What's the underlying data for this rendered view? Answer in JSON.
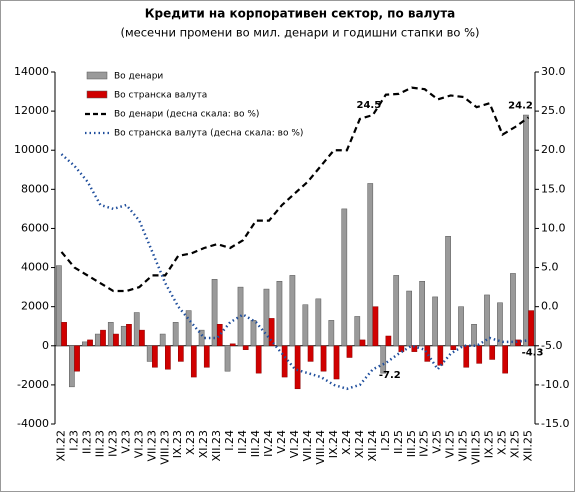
{
  "chart_data": {
    "type": "bar_line",
    "title": "Кредити на корпоративен сектор, по валута",
    "subtitle": "(месечни промени во мил. денари и годишни стапки во %)",
    "categories": [
      "XII.22",
      "I.23",
      "II.23",
      "III.23",
      "IV.23",
      "V.23",
      "VI.23",
      "VII.23",
      "VIII.23",
      "IX.23",
      "X.23",
      "XI.23",
      "XII.23",
      "I.24",
      "II.24",
      "III.24",
      "IV.24",
      "V.24",
      "VI.24",
      "VII.24",
      "VIII.24",
      "IX.24",
      "X.24",
      "XI.24",
      "XII.24",
      "I.25",
      "II.25",
      "III.25",
      "IV.25",
      "V.25",
      "VI.25",
      "VII.25",
      "VIII.25",
      "IX.25",
      "X.25",
      "XI.25",
      "XII.25"
    ],
    "series": [
      {
        "name": "Во денари",
        "color": "#9a9a9a",
        "kind": "bar",
        "axis": "y",
        "values": [
          4100,
          -2100,
          200,
          600,
          1200,
          1000,
          1700,
          -800,
          600,
          1200,
          1800,
          800,
          3400,
          -1300,
          3000,
          1300,
          2900,
          3300,
          3600,
          2100,
          2400,
          1300,
          7000,
          1500,
          8300,
          -1400,
          3600,
          2800,
          3300,
          2500,
          5600,
          2000,
          1100,
          2600,
          2200,
          3700,
          11800
        ]
      },
      {
        "name": "Во странска валута",
        "color": "#d00000",
        "kind": "bar",
        "axis": "y",
        "values": [
          1200,
          -1300,
          300,
          800,
          600,
          1100,
          800,
          -1100,
          -1200,
          -800,
          -1600,
          -1100,
          1100,
          100,
          -200,
          -1400,
          1400,
          -1600,
          -2200,
          -800,
          -1300,
          -1700,
          -600,
          300,
          2000,
          500,
          -300,
          -300,
          -800,
          -1000,
          -200,
          -1100,
          -900,
          -700,
          -1400,
          300,
          1800
        ]
      },
      {
        "name": "Во денари  (десна скала: во %)",
        "color": "#000000",
        "kind": "dashed",
        "axis": "y2",
        "values": [
          7,
          5,
          4,
          3,
          2,
          2,
          2.5,
          4,
          4,
          6.5,
          6.8,
          7.5,
          8,
          7.5,
          8.5,
          11,
          11,
          13,
          14.5,
          16,
          18,
          20,
          20,
          24,
          24.5,
          27.1,
          27.2,
          28,
          27.8,
          26.5,
          27,
          26.8,
          25.5,
          26,
          22,
          23,
          24.2
        ]
      },
      {
        "name": "Во странска валута  (десна скала: во %)",
        "color": "#1f4e9c",
        "kind": "dotted",
        "axis": "y2",
        "values": [
          19.5,
          18,
          16,
          13,
          12.5,
          13,
          11,
          7,
          3,
          0,
          -2,
          -4,
          -4,
          -2,
          -1,
          -2,
          -4,
          -6,
          -8,
          -8.5,
          -9,
          -10,
          -10.5,
          -10,
          -8,
          -7.2,
          -6,
          -5,
          -5.5,
          -8,
          -6,
          -5,
          -5,
          -4,
          -4.5,
          -4.5,
          -4.3
        ]
      }
    ],
    "ylim": [
      -4000,
      14000
    ],
    "yticks": [
      -4000,
      -2000,
      0,
      2000,
      4000,
      6000,
      8000,
      10000,
      12000,
      14000
    ],
    "y2lim": [
      -15,
      30
    ],
    "y2ticks": [
      {
        "value": -15,
        "label": "-15.0"
      },
      {
        "value": -10,
        "label": "-10.0"
      },
      {
        "value": -5,
        "label": "-5.0"
      },
      {
        "value": 0,
        "label": "0.0"
      },
      {
        "value": 5,
        "label": "5.0"
      },
      {
        "value": 10,
        "label": "10.0"
      },
      {
        "value": 15,
        "label": "15.0"
      },
      {
        "value": 20,
        "label": "20.0"
      },
      {
        "value": 25,
        "label": "25.0"
      },
      {
        "value": 30,
        "label": "30.0"
      }
    ]
  }
}
